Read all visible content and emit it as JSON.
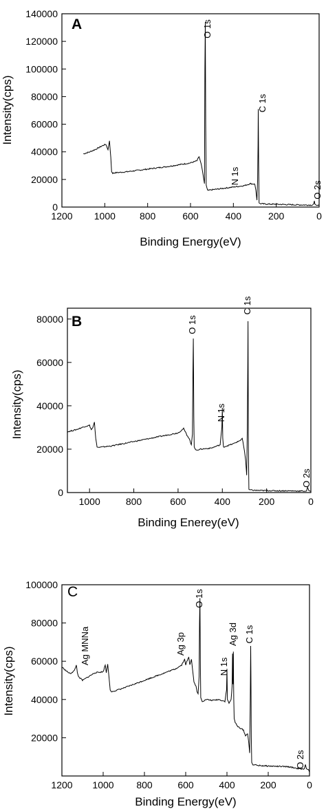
{
  "colors": {
    "line": "#000000",
    "background": "#ffffff"
  },
  "chart_data": [
    {
      "type": "line",
      "panel": "A",
      "xlabel": "Binding Energy(eV)",
      "ylabel": "Intensity(cps)",
      "xlim": [
        1200,
        0
      ],
      "ylim": [
        0,
        140000
      ],
      "x_ticks": [
        1200,
        1000,
        800,
        600,
        400,
        200,
        0
      ],
      "y_ticks": [
        0,
        20000,
        40000,
        60000,
        80000,
        100000,
        120000,
        140000
      ],
      "x_tick_labels": [
        "1200",
        "1000",
        "800",
        "600",
        "400",
        "200",
        "0"
      ],
      "y_tick_labels": [
        "0",
        "20000",
        "40000",
        "60000",
        "80000",
        "100000",
        "120000",
        "140000"
      ],
      "series": [
        {
          "x": [
            1100,
            1070,
            1040,
            1010,
            995,
            985,
            978,
            972,
            968,
            963,
            955,
            900,
            800,
            700,
            600,
            570,
            560,
            550,
            545,
            540,
            535,
            533,
            531,
            529,
            527,
            520,
            500,
            450,
            400,
            350,
            320,
            300,
            295,
            290,
            287,
            285,
            284,
            282,
            280,
            275,
            250,
            200,
            150,
            100,
            50,
            30,
            25,
            22,
            20,
            15,
            10,
            0
          ],
          "y": [
            38500,
            40000,
            42000,
            44500,
            45500,
            41500,
            48000,
            36000,
            25500,
            24500,
            24800,
            25500,
            27500,
            29500,
            32000,
            33500,
            36500,
            31000,
            27000,
            22000,
            17000,
            100000,
            134000,
            60000,
            16000,
            12000,
            12500,
            13500,
            14500,
            15500,
            17000,
            16500,
            12000,
            5000,
            20000,
            45000,
            71000,
            30000,
            3000,
            2500,
            2200,
            2000,
            1800,
            1600,
            1500,
            1500,
            2500,
            4500,
            2200,
            1500,
            1200,
            1000
          ]
        }
      ],
      "annotations": [
        "O 1s",
        "C 1s",
        "N 1s",
        "O 2s"
      ]
    },
    {
      "type": "line",
      "panel": "B",
      "xlabel": "Binding Enerey(eV)",
      "ylabel": "Intensity(cps)",
      "xlim": [
        1100,
        0
      ],
      "ylim": [
        0,
        85000
      ],
      "x_ticks": [
        1000,
        800,
        600,
        400,
        200,
        0
      ],
      "y_ticks": [
        0,
        20000,
        40000,
        60000,
        80000
      ],
      "x_tick_labels": [
        "1000",
        "800",
        "600",
        "400",
        "200",
        "0"
      ],
      "y_tick_labels": [
        "0",
        "20000",
        "40000",
        "60000",
        "80000"
      ],
      "series": [
        {
          "x": [
            1100,
            1060,
            1020,
            1000,
            992,
            985,
            978,
            972,
            966,
            960,
            900,
            800,
            700,
            600,
            575,
            560,
            550,
            540,
            535,
            533,
            531,
            529,
            527,
            520,
            500,
            450,
            410,
            402,
            400,
            398,
            395,
            380,
            350,
            320,
            310,
            300,
            295,
            290,
            287,
            285,
            284,
            282,
            280,
            275,
            250,
            200,
            150,
            100,
            50,
            20,
            15,
            10,
            5,
            0
          ],
          "y": [
            28000,
            29000,
            30500,
            31000,
            29000,
            30000,
            32500,
            25000,
            21000,
            20800,
            21500,
            23500,
            25500,
            27500,
            29500,
            26500,
            25000,
            22000,
            27000,
            55000,
            71000,
            35000,
            21000,
            19500,
            20000,
            20500,
            22000,
            30000,
            39000,
            25000,
            21000,
            21500,
            22500,
            24000,
            25000,
            19000,
            15000,
            8000,
            30000,
            60000,
            79000,
            20000,
            1500,
            1200,
            1000,
            900,
            800,
            800,
            700,
            700,
            2500,
            1000,
            700,
            600
          ]
        }
      ],
      "annotations": [
        "O 1s",
        "N 1s",
        "C 1s",
        "O 2s"
      ]
    },
    {
      "type": "line",
      "panel": "C",
      "xlabel": "Binding Energy(eV)",
      "ylabel": "Intensity(cps)",
      "xlim": [
        1200,
        0
      ],
      "ylim": [
        0,
        100000
      ],
      "x_ticks": [
        1200,
        1000,
        800,
        600,
        400,
        200,
        0
      ],
      "y_ticks": [
        20000,
        40000,
        60000,
        80000,
        100000
      ],
      "x_tick_labels": [
        "1200",
        "1000",
        "800",
        "600",
        "400",
        "200",
        "0"
      ],
      "y_tick_labels": [
        "20000",
        "40000",
        "60000",
        "80000",
        "100000"
      ],
      "series": [
        {
          "x": [
            1200,
            1180,
            1160,
            1140,
            1130,
            1125,
            1120,
            1100,
            1070,
            1040,
            1000,
            990,
            985,
            978,
            972,
            966,
            960,
            900,
            850,
            800,
            750,
            700,
            650,
            620,
            605,
            600,
            595,
            585,
            580,
            572,
            565,
            560,
            550,
            545,
            540,
            535,
            533,
            531,
            529,
            527,
            520,
            500,
            470,
            440,
            410,
            402,
            400,
            398,
            390,
            380,
            375,
            373,
            371,
            369,
            368,
            367,
            365,
            360,
            350,
            320,
            310,
            300,
            295,
            290,
            287,
            285,
            284,
            282,
            280,
            275,
            250,
            200,
            150,
            100,
            60,
            40,
            30,
            25,
            20,
            15,
            10,
            5,
            0
          ],
          "y": [
            57000,
            55000,
            53500,
            55000,
            58000,
            54000,
            52000,
            50000,
            52000,
            54000,
            54500,
            58000,
            54000,
            58500,
            52000,
            45000,
            44000,
            46000,
            48000,
            50000,
            52000,
            54000,
            56000,
            58000,
            61000,
            58000,
            60000,
            62000,
            58000,
            61000,
            54000,
            49000,
            47000,
            44000,
            43000,
            52000,
            80000,
            93000,
            60000,
            41000,
            39000,
            40000,
            39500,
            40000,
            39000,
            45000,
            56000,
            40000,
            38000,
            40000,
            47000,
            64000,
            48000,
            65000,
            50000,
            40000,
            30000,
            28000,
            26000,
            24000,
            21000,
            22000,
            18000,
            12000,
            40000,
            68000,
            55000,
            20000,
            7000,
            6000,
            5500,
            5200,
            5000,
            4800,
            4000,
            3600,
            3500,
            3800,
            6000,
            3800,
            3500,
            3300,
            2000
          ]
        }
      ],
      "annotations": [
        "Ag MNNa",
        "Ag 3p",
        "O 1s",
        "N 1s",
        "Ag 3d",
        "C 1s",
        "O 2s"
      ]
    }
  ]
}
